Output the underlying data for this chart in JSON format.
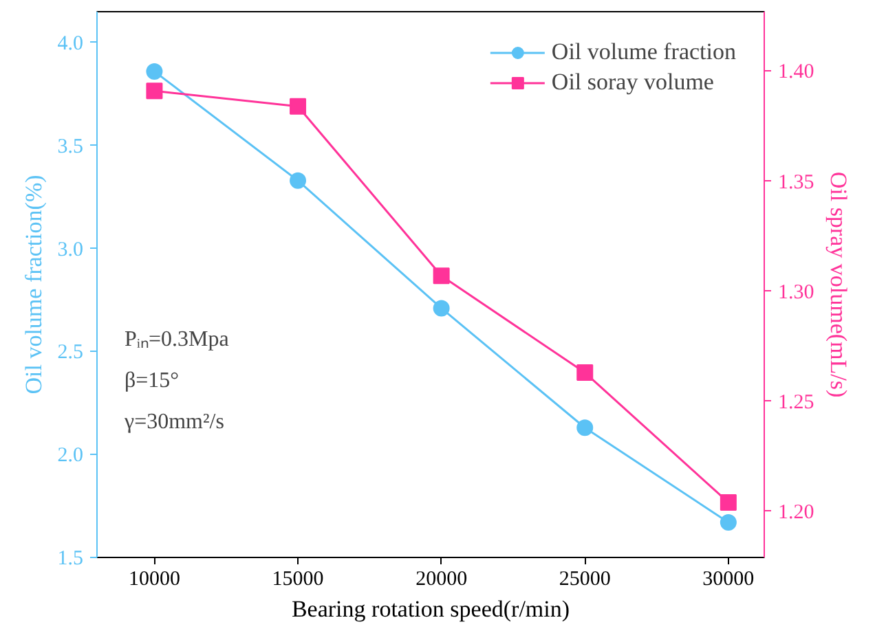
{
  "chart_data": {
    "type": "line",
    "xlabel": "Bearing rotation speed(r/min)",
    "ylabel": "Oil volume fraction(%)",
    "y2label": "Oil spray volume(mL/s)",
    "x": [
      10000,
      15000,
      20000,
      25000,
      30000
    ],
    "series": [
      {
        "name": "Oil volume fraction",
        "color": "#5bc2f5",
        "marker": "circle",
        "values": [
          3.86,
          3.33,
          2.71,
          2.13,
          1.67
        ]
      },
      {
        "name": "Oil soray volume",
        "color": "#ff3399",
        "marker": "square",
        "axis": "y2",
        "values": [
          1.391,
          1.384,
          1.307,
          1.263,
          1.204
        ]
      }
    ],
    "xlim": [
      8000,
      31250
    ],
    "xticks": [
      10000,
      15000,
      20000,
      25000,
      30000
    ],
    "ylim": [
      1.5,
      4.15
    ],
    "yticks": [
      1.5,
      {
        "value": 2,
        "label": "2.0"
      },
      2.5,
      {
        "value": 3,
        "label": "3.0"
      },
      3.5,
      {
        "value": 4,
        "label": "4.0"
      }
    ],
    "y2lim": [
      1.179,
      1.427
    ],
    "y2ticks": [
      {
        "value": 1.2,
        "label": "1.20"
      },
      1.25,
      {
        "value": 1.3,
        "label": "1.30"
      },
      1.35,
      {
        "value": 1.4,
        "label": "1.40"
      }
    ],
    "annotations": [
      "Pᵢₙ=0.3Mpa",
      "β=15°",
      "γ=30mm²/s"
    ],
    "legend": "top right",
    "grid": false,
    "line_style": "solid"
  }
}
